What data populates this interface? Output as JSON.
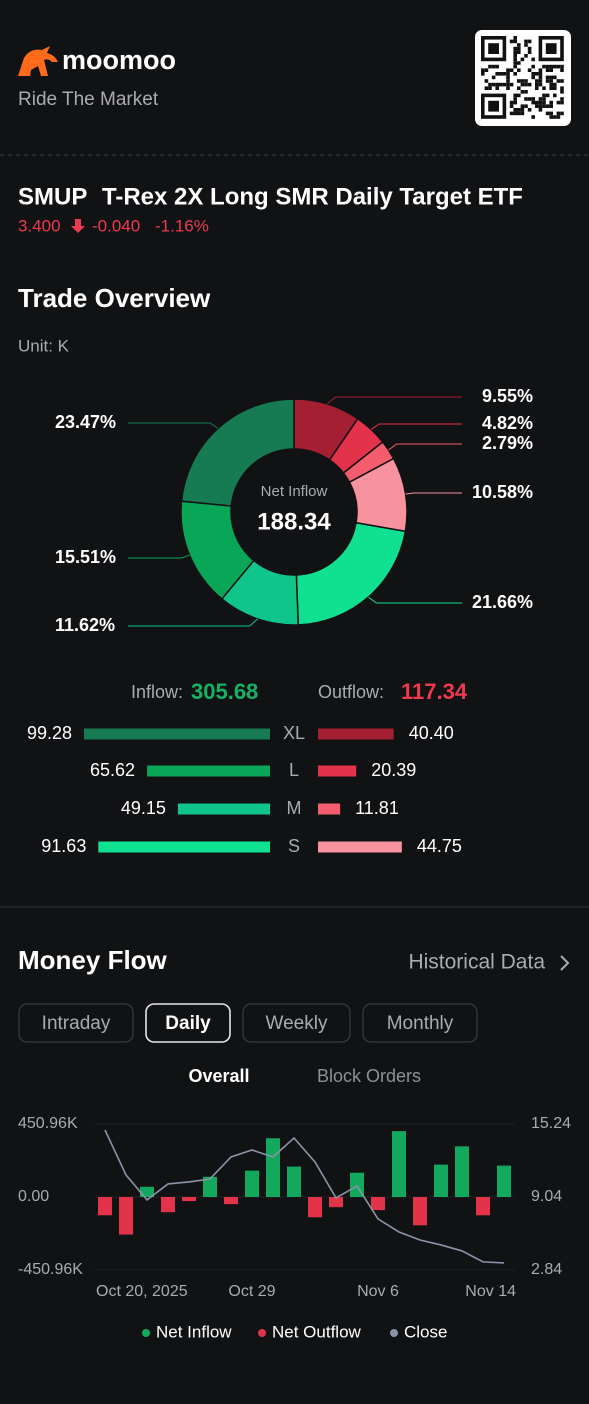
{
  "header": {
    "brand": "moomoo",
    "tagline": "Ride The Market"
  },
  "stock": {
    "symbol": "SMUP",
    "name": "T-Rex 2X Long SMR Daily Target ETF",
    "price": "3.400",
    "change": "-0.040",
    "change_pct": "-1.16%"
  },
  "trade_overview": {
    "title": "Trade Overview",
    "unit": "Unit: K",
    "donut": {
      "center_label": "Net Inflow",
      "center_value": 188.34,
      "values": [
        9.55,
        4.82,
        2.79,
        10.58,
        21.66,
        11.62,
        15.51,
        23.47
      ],
      "value_labels": [
        "9.55%",
        "4.82%",
        "2.79%",
        "10.58%",
        "21.66%",
        "11.62%",
        "15.51%",
        "23.47%"
      ],
      "colors": [
        "#a51f32",
        "#e2334b",
        "#f45d6e",
        "#f7929f",
        "#10e191",
        "#10c589",
        "#0aa658",
        "#167a52"
      ]
    },
    "inflow": {
      "label": "Inflow:",
      "total": 305.68
    },
    "outflow": {
      "label": "Outflow:",
      "total": 117.34
    },
    "sizes": [
      "XL",
      "L",
      "M",
      "S"
    ],
    "inflow_values": [
      99.28,
      65.62,
      49.15,
      91.63
    ],
    "inflow_colors": [
      "#167a52",
      "#0aa658",
      "#10c589",
      "#10e191"
    ],
    "outflow_values": [
      40.4,
      20.39,
      11.81,
      44.75
    ],
    "outflow_value_labels": [
      "40.40",
      "20.39",
      "11.81",
      "44.75"
    ],
    "outflow_colors": [
      "#a51f32",
      "#e2334b",
      "#f45d6e",
      "#f7929f"
    ]
  },
  "money_flow": {
    "title": "Money Flow",
    "link": "Historical Data",
    "tabs": [
      "Intraday",
      "Daily",
      "Weekly",
      "Monthly"
    ],
    "active_tab": 1,
    "subtabs": [
      "Overall",
      "Block Orders"
    ],
    "active_subtab": 0,
    "chart_data": {
      "type": "bar",
      "categories": [
        "Oct 20, 2025",
        null,
        null,
        null,
        null,
        null,
        null,
        "Oct 29",
        null,
        null,
        null,
        null,
        null,
        "Nov 6",
        null,
        null,
        null,
        null,
        null,
        "Nov 14"
      ],
      "series": [
        {
          "name": "Net Inflow",
          "color": "#12a85e",
          "values": [
            null,
            null,
            63,
            null,
            null,
            125,
            null,
            163,
            363,
            188,
            null,
            null,
            150,
            null,
            407,
            null,
            200,
            313,
            null,
            194
          ]
        },
        {
          "name": "Net Outflow",
          "color": "#e2334b",
          "values": [
            -113,
            -232,
            null,
            -94,
            -25,
            null,
            -44,
            null,
            null,
            null,
            -125,
            -63,
            null,
            -81,
            null,
            -175,
            null,
            null,
            -113,
            null
          ]
        },
        {
          "name": "Close",
          "color": "#8a93a8",
          "type": "line",
          "axis": "y2",
          "values": [
            14.73,
            10.91,
            8.79,
            10.15,
            10.32,
            10.57,
            12.44,
            13.03,
            12.44,
            14.05,
            12.01,
            8.96,
            9.98,
            7.18,
            6.07,
            5.39,
            4.97,
            4.46,
            3.53,
            3.44
          ]
        }
      ],
      "ylim": [
        -450.96,
        450.96
      ],
      "yticks": [
        {
          "value": -450.96,
          "label": "-450.96K"
        },
        {
          "value": 0,
          "label": "0.00"
        },
        {
          "value": 450.96,
          "label": "450.96K"
        }
      ],
      "y2lim": [
        2.84,
        15.24
      ],
      "y2ticks": [
        2.84,
        9.04,
        15.24
      ]
    }
  }
}
